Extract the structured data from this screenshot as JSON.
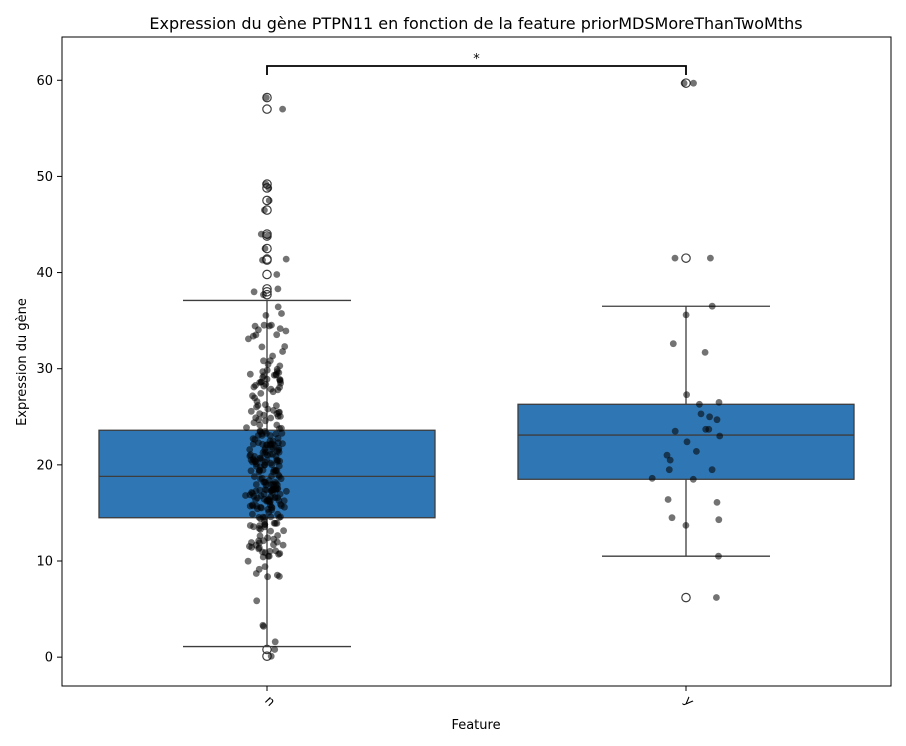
{
  "chart_data": {
    "type": "box",
    "title": "Expression du gène PTPN11 en fonction de la feature priorMDSMoreThanTwoMths",
    "xlabel": "Feature",
    "ylabel": "Expression du gène",
    "categories": [
      "n",
      "y"
    ],
    "ylim": [
      -3,
      64.5
    ],
    "yticks": [
      0,
      10,
      20,
      30,
      40,
      50,
      60
    ],
    "grid": false,
    "box_color": "#2f77b4",
    "point_color": "#000000",
    "significance": {
      "between": [
        "n",
        "y"
      ],
      "label": "*"
    },
    "boxes": [
      {
        "category": "n",
        "whisker_low": 1.1,
        "q1": 14.5,
        "median": 18.8,
        "q3": 23.6,
        "whisker_high": 37.1,
        "outliers": [
          0.1,
          0.8,
          37.7,
          38.0,
          38.3,
          39.8,
          41.3,
          41.4,
          42.5,
          43.8,
          44.0,
          46.5,
          47.5,
          48.8,
          49.2,
          57.0,
          58.2
        ]
      },
      {
        "category": "y",
        "whisker_low": 10.5,
        "q1": 18.5,
        "median": 23.1,
        "q3": 26.3,
        "whisker_high": 36.5,
        "outliers": [
          6.2,
          41.5,
          59.7
        ]
      }
    ],
    "points_y": [
      6.2,
      10.5,
      13.7,
      14.3,
      14.5,
      16.1,
      16.4,
      18.5,
      18.6,
      19.5,
      19.5,
      20.5,
      21.0,
      21.4,
      22.4,
      23.0,
      23.5,
      23.7,
      23.7,
      24.7,
      25.0,
      25.3,
      26.3,
      26.5,
      27.3,
      31.7,
      32.6,
      35.6,
      36.5,
      41.5,
      41.5,
      59.7,
      59.7
    ]
  }
}
